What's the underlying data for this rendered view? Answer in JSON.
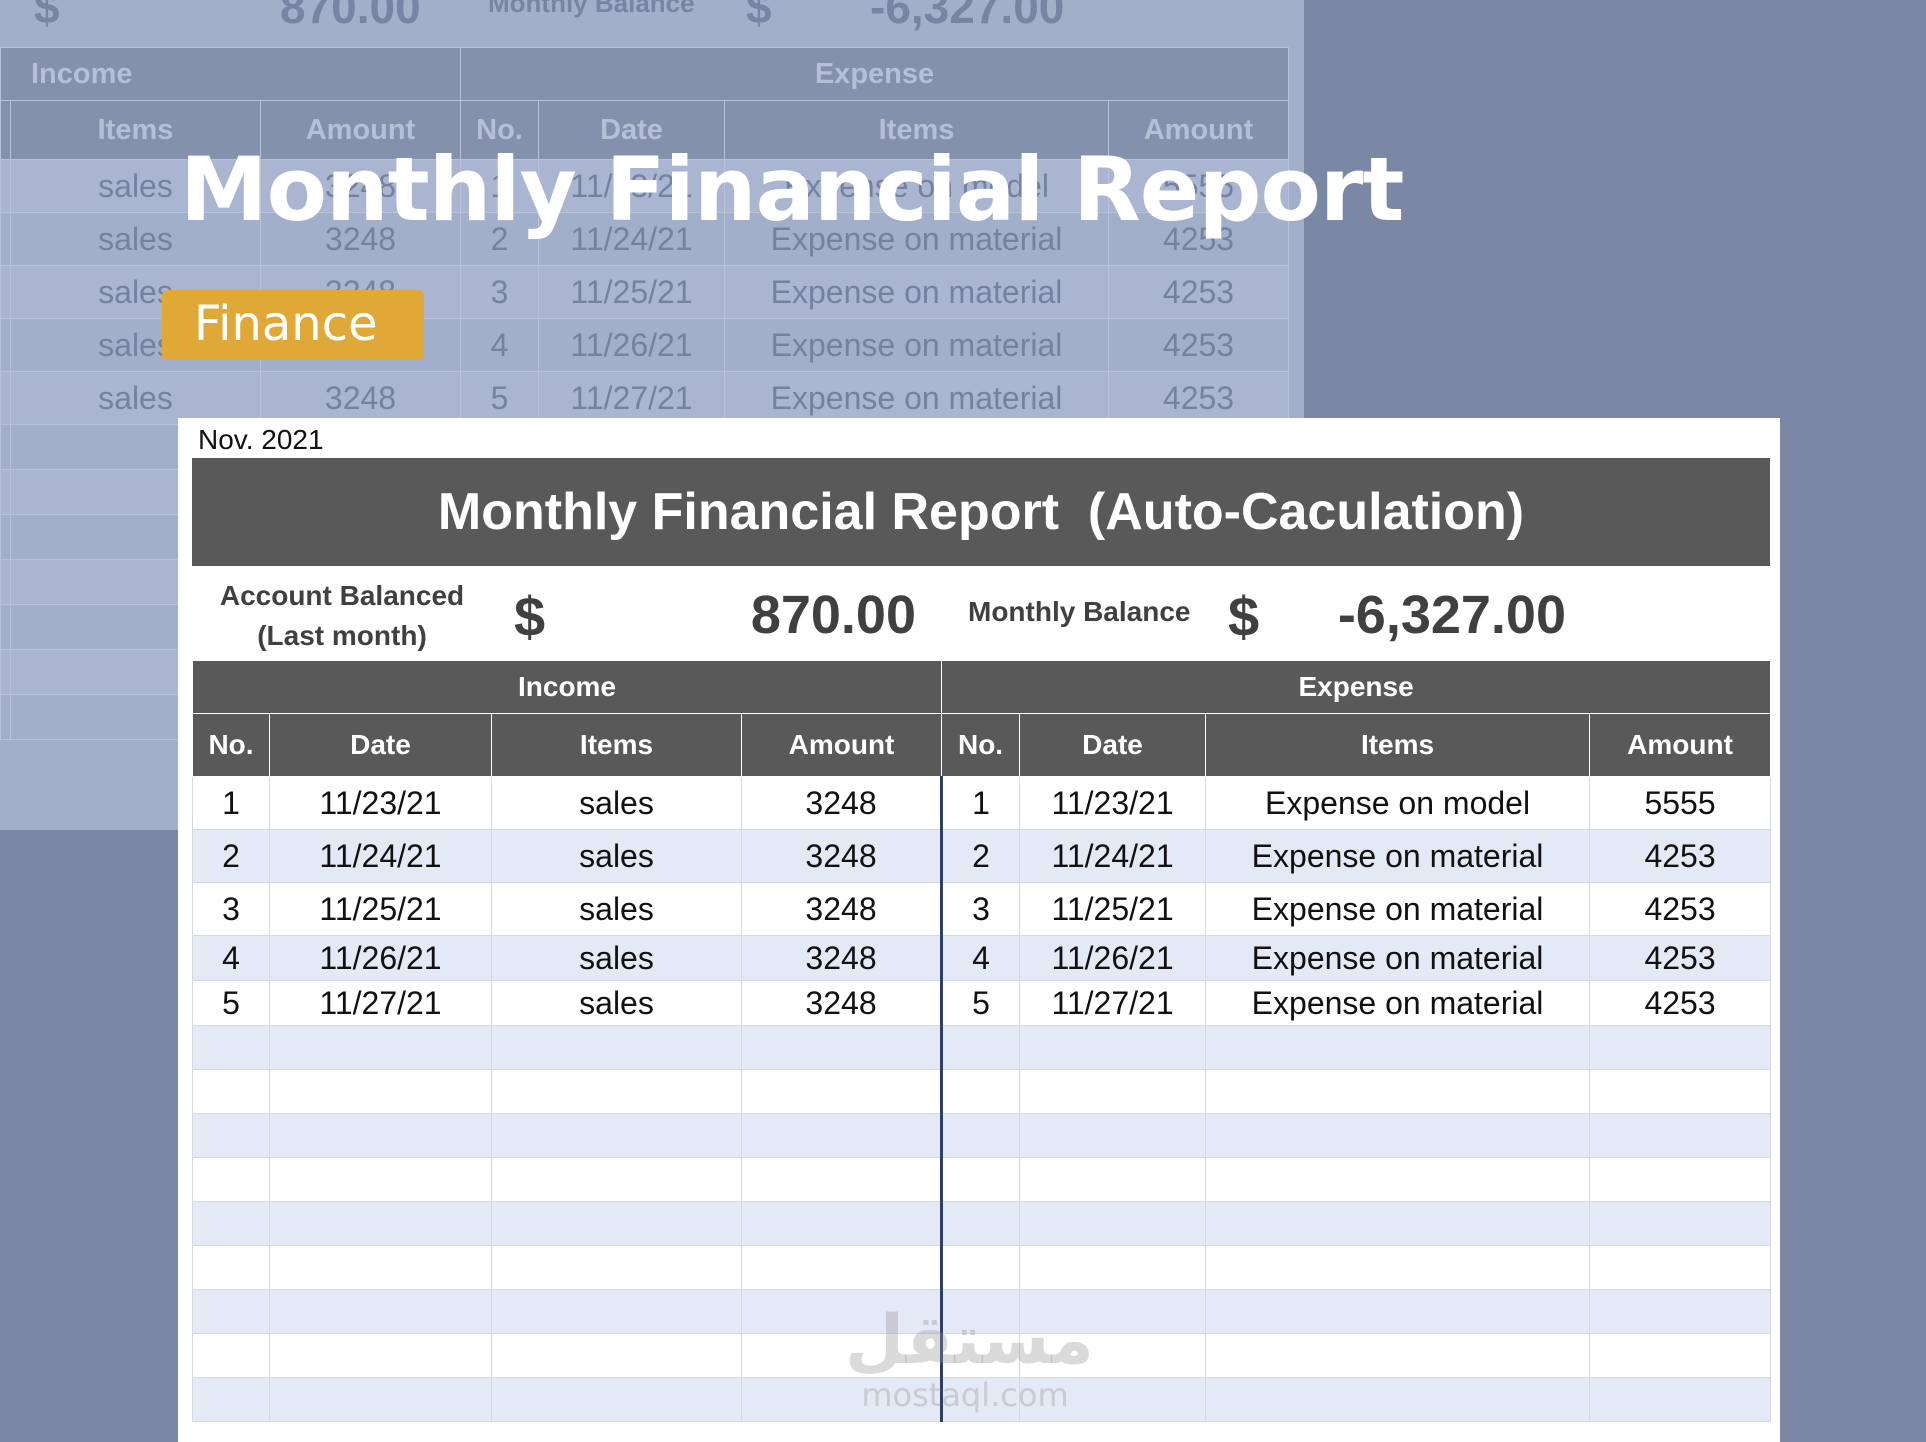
{
  "banner": {
    "title": "Monthly Financial Report",
    "tag": "Finance"
  },
  "background_sheet": {
    "account_dollar": "$",
    "account_value": "870.00",
    "monthly_balance_label": "Monthly Balance",
    "monthly_dollar": "$",
    "monthly_value": "-6,327.00",
    "income_label": "Income",
    "expense_label": "Expense",
    "income_columns": [
      "Items",
      "Amount"
    ],
    "expense_columns": [
      "No.",
      "Date",
      "Items",
      "Amount"
    ],
    "rows": [
      {
        "item": "sales",
        "amount": "3248",
        "no": "1",
        "date": "11/23/21",
        "exp_item": "Expense on model",
        "exp_amount": "5555"
      },
      {
        "item": "sales",
        "amount": "3248",
        "no": "2",
        "date": "11/24/21",
        "exp_item": "Expense on material",
        "exp_amount": "4253"
      },
      {
        "item": "sales",
        "amount": "3248",
        "no": "3",
        "date": "11/25/21",
        "exp_item": "Expense on material",
        "exp_amount": "4253"
      },
      {
        "item": "sales",
        "amount": "3248",
        "no": "4",
        "date": "11/26/21",
        "exp_item": "Expense on material",
        "exp_amount": "4253"
      },
      {
        "item": "sales",
        "amount": "3248",
        "no": "5",
        "date": "11/27/21",
        "exp_item": "Expense on material",
        "exp_amount": "4253"
      }
    ]
  },
  "report": {
    "period": "Nov. 2021",
    "title": "Monthly Financial Report  (Auto-Caculation)",
    "account_label_line1": "Account Balanced",
    "account_label_line2": "(Last month)",
    "account_dollar": "$",
    "account_value": "870.00",
    "monthly_balance_label": "Monthly Balance",
    "monthly_dollar": "$",
    "monthly_value": "-6,327.00",
    "income_label": "Income",
    "expense_label": "Expense",
    "income_columns": [
      "No.",
      "Date",
      "Items",
      "Amount"
    ],
    "expense_columns": [
      "No.",
      "Date",
      "Items",
      "Amount"
    ],
    "income_rows": [
      {
        "no": "1",
        "date": "11/23/21",
        "item": "sales",
        "amount": "3248"
      },
      {
        "no": "2",
        "date": "11/24/21",
        "item": "sales",
        "amount": "3248"
      },
      {
        "no": "3",
        "date": "11/25/21",
        "item": "sales",
        "amount": "3248"
      },
      {
        "no": "4",
        "date": "11/26/21",
        "item": "sales",
        "amount": "3248"
      },
      {
        "no": "5",
        "date": "11/27/21",
        "item": "sales",
        "amount": "3248"
      }
    ],
    "expense_rows": [
      {
        "no": "1",
        "date": "11/23/21",
        "item": "Expense on model",
        "amount": "5555"
      },
      {
        "no": "2",
        "date": "11/24/21",
        "item": "Expense on material",
        "amount": "4253"
      },
      {
        "no": "3",
        "date": "11/25/21",
        "item": "Expense on material",
        "amount": "4253"
      },
      {
        "no": "4",
        "date": "11/26/21",
        "item": "Expense on material",
        "amount": "4253"
      },
      {
        "no": "5",
        "date": "11/27/21",
        "item": "Expense on material",
        "amount": "4253"
      }
    ]
  },
  "watermark": {
    "arabic": "مستقل",
    "latin": "mostaql.com"
  }
}
